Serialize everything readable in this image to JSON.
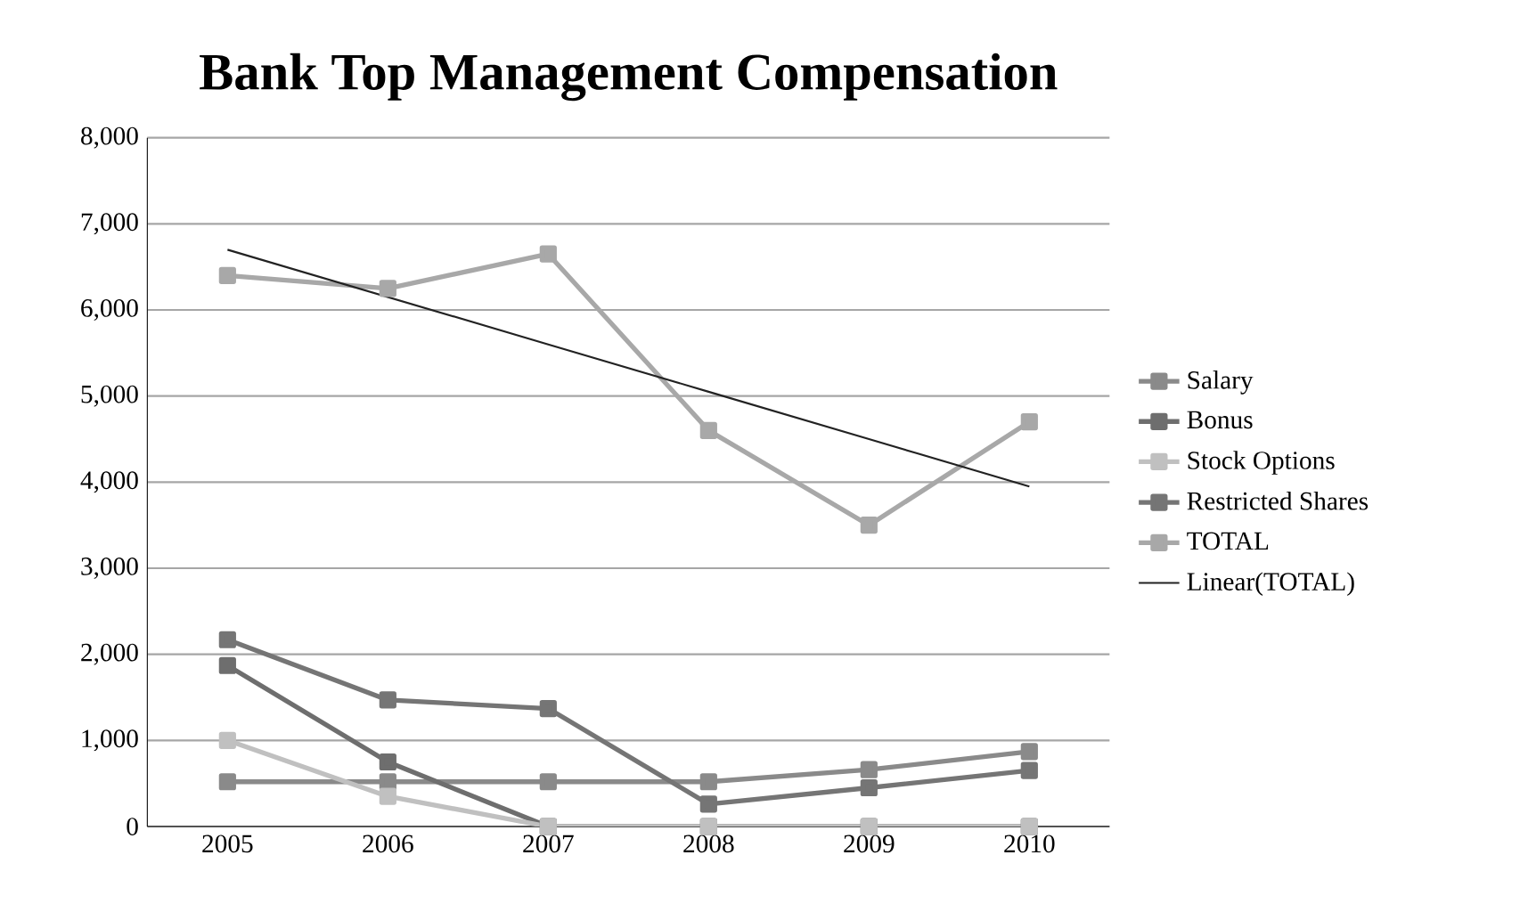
{
  "chart_data": {
    "type": "line",
    "title": "Bank Top Management Compensation",
    "categories": [
      "2005",
      "2006",
      "2007",
      "2008",
      "2009",
      "2010"
    ],
    "ylim": [
      0,
      8000
    ],
    "yticks": [
      {
        "value": 0,
        "label": "0"
      },
      {
        "value": 1000,
        "label": "1,000"
      },
      {
        "value": 2000,
        "label": "2,000"
      },
      {
        "value": 3000,
        "label": "3,000"
      },
      {
        "value": 4000,
        "label": "4,000"
      },
      {
        "value": 5000,
        "label": "5,000"
      },
      {
        "value": 6000,
        "label": "6,000"
      },
      {
        "value": 7000,
        "label": "7,000"
      },
      {
        "value": 8000,
        "label": "8,000"
      }
    ],
    "grid": "y",
    "legend": "right",
    "marker": "square",
    "series": [
      {
        "name": "Salary",
        "color": "#8a8a8a",
        "values": [
          520,
          520,
          520,
          520,
          660,
          870
        ]
      },
      {
        "name": "Bonus",
        "color": "#6e6e6e",
        "values": [
          1870,
          750,
          0,
          0,
          0,
          0
        ]
      },
      {
        "name": "Stock Options",
        "color": "#c0c0c0",
        "values": [
          1000,
          350,
          0,
          0,
          0,
          0
        ]
      },
      {
        "name": "Restricted Shares",
        "color": "#757575",
        "values": [
          2170,
          1470,
          1370,
          260,
          450,
          650
        ]
      },
      {
        "name": "TOTAL",
        "color": "#a8a8a8",
        "values": [
          6400,
          6250,
          6650,
          4600,
          3500,
          4700
        ]
      },
      {
        "name": "Linear(TOTAL)",
        "color": "#222222",
        "marker": "none",
        "values": [
          6700,
          6150,
          5600,
          5050,
          4500,
          3950
        ]
      }
    ]
  }
}
